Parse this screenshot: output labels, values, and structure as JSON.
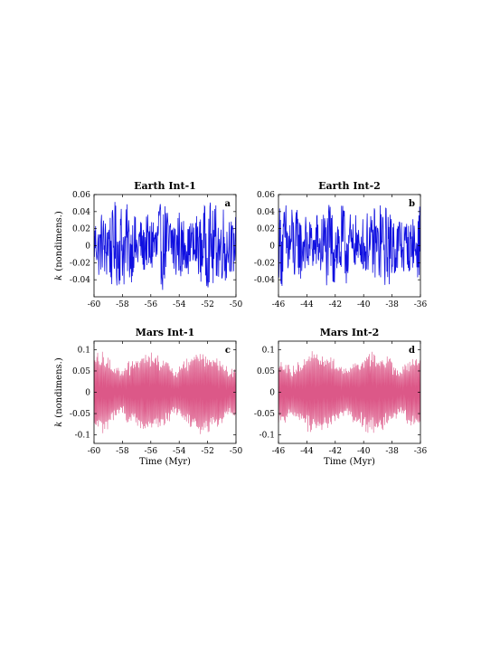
{
  "chart_data": [
    {
      "type": "line",
      "title": "Earth Int-1",
      "panel_label": "a",
      "xlabel": "",
      "ylabel_var": "k",
      "ylabel_unit": "(nondimens.)",
      "xlim": [
        -60,
        -50
      ],
      "ylim": [
        -0.06,
        0.06
      ],
      "xticks": [
        -60,
        -58,
        -56,
        -54,
        -52,
        -50
      ],
      "yticks": [
        -0.04,
        -0.02,
        0,
        0.02,
        0.04,
        0.06
      ],
      "ytick_labels": [
        "-0.04",
        "-0.02",
        "0",
        "0.02",
        "0.04",
        "0.06"
      ],
      "color": "#1010e0",
      "amplitude": 0.06,
      "grid": false
    },
    {
      "type": "line",
      "title": "Earth Int-2",
      "panel_label": "b",
      "xlabel": "",
      "ylabel_var": "",
      "ylabel_unit": "",
      "xlim": [
        -46,
        -36
      ],
      "ylim": [
        -0.06,
        0.06
      ],
      "xticks": [
        -46,
        -44,
        -42,
        -40,
        -38,
        -36
      ],
      "yticks": [
        -0.04,
        -0.02,
        0,
        0.02,
        0.04,
        0.06
      ],
      "ytick_labels": [
        "-0.04",
        "-0.02",
        "0",
        "0.02",
        "0.04",
        "0.06"
      ],
      "color": "#1010e0",
      "amplitude": 0.06,
      "grid": false
    },
    {
      "type": "line",
      "title": "Mars Int-1",
      "panel_label": "c",
      "xlabel": "Time (Myr)",
      "ylabel_var": "k",
      "ylabel_unit": "(nondimens.)",
      "xlim": [
        -60,
        -50
      ],
      "ylim": [
        -0.12,
        0.12
      ],
      "xticks": [
        -60,
        -58,
        -56,
        -54,
        -52,
        -50
      ],
      "yticks": [
        -0.1,
        -0.05,
        0,
        0.05,
        0.1
      ],
      "ytick_labels": [
        "-0.1",
        "-0.05",
        "0",
        "0.05",
        "0.1"
      ],
      "color": "#d63b73",
      "amplitude": 0.12,
      "grid": false
    },
    {
      "type": "line",
      "title": "Mars Int-2",
      "panel_label": "d",
      "xlabel": "Time (Myr)",
      "ylabel_var": "",
      "ylabel_unit": "",
      "xlim": [
        -46,
        -36
      ],
      "ylim": [
        -0.12,
        0.12
      ],
      "xticks": [
        -46,
        -44,
        -42,
        -40,
        -38,
        -36
      ],
      "yticks": [
        -0.1,
        -0.05,
        0,
        0.05,
        0.1
      ],
      "ytick_labels": [
        "-0.1",
        "-0.05",
        "0",
        "0.05",
        "0.1"
      ],
      "color": "#d63b73",
      "amplitude": 0.12,
      "grid": false
    }
  ]
}
